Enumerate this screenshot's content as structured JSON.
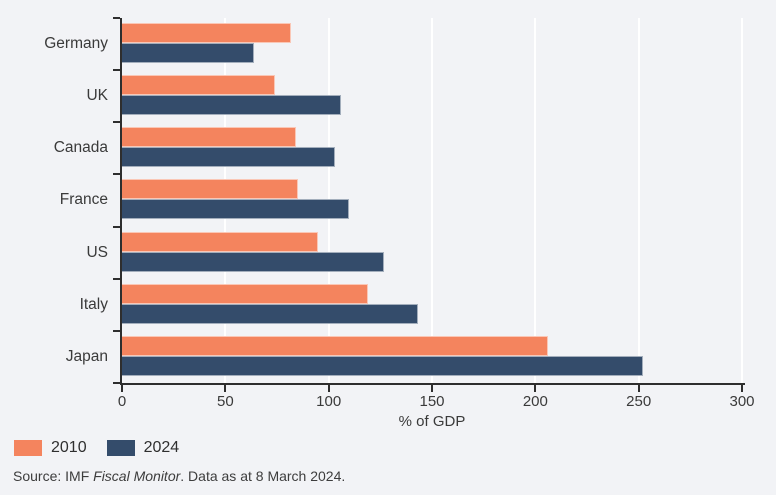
{
  "chart_data": {
    "type": "bar",
    "orientation": "horizontal",
    "categories": [
      "Germany",
      "UK",
      "Canada",
      "France",
      "US",
      "Italy",
      "Japan"
    ],
    "series": [
      {
        "name": "2010",
        "color": "#F4845E",
        "values": [
          82,
          74,
          84,
          85,
          95,
          119,
          206
        ]
      },
      {
        "name": "2024",
        "color": "#344C6B",
        "values": [
          64,
          106,
          103,
          110,
          127,
          143,
          252
        ]
      }
    ],
    "xlabel": "% of GDP",
    "xlim": [
      0,
      300
    ],
    "xticks": [
      0,
      50,
      100,
      150,
      200,
      250,
      300
    ],
    "grid": "vertical-white-gridlines",
    "legend_position": "bottom-left",
    "background_color": "#f2f3f6",
    "axis_color": "#2e2e2e"
  },
  "source_note": {
    "prefix": "Source: IMF ",
    "italic": "Fiscal Monitor",
    "suffix": ". Data as at 8 March 2024."
  }
}
